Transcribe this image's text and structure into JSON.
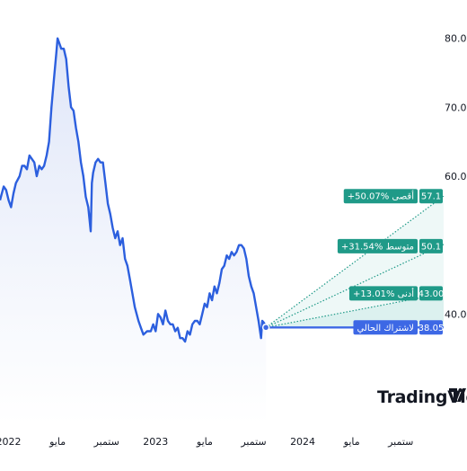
{
  "watermark": {
    "text": "TradingView"
  },
  "colors": {
    "line": "#2c5fde",
    "area_top": "#dfe6f8",
    "area_bottom": "#ffffff",
    "current": "#3d68e5",
    "forecast": "#1f9a88",
    "forecast_fill": "#26a69a",
    "axis_text": "#131722"
  },
  "chart_data": {
    "type": "line",
    "title": "",
    "xlabel": "",
    "ylabel": "",
    "x_ticks": [
      {
        "label": "2022",
        "t": 0.0
      },
      {
        "label": "مايو",
        "t": 4.0
      },
      {
        "label": "ستمبر",
        "t": 8.0
      },
      {
        "label": "2023",
        "t": 12.0
      },
      {
        "label": "مايو",
        "t": 16.0
      },
      {
        "label": "ستمبر",
        "t": 20.0
      },
      {
        "label": "2024",
        "t": 24.0
      },
      {
        "label": "مايو",
        "t": 28.0
      },
      {
        "label": "ستمبر",
        "t": 32.0
      }
    ],
    "y_ticks": [
      40.0,
      60.0,
      70.0,
      80.0
    ],
    "y_tick_labels": [
      "40.0",
      "60.0",
      "70.0",
      "80.0"
    ],
    "ylim": [
      24,
      84
    ],
    "xlim": [
      -0.7,
      35.5
    ],
    "grid": false,
    "series": [
      {
        "points": [
          [
            -0.7,
            56.5
          ],
          [
            -0.4,
            58.5
          ],
          [
            -0.2,
            58
          ],
          [
            0.0,
            56.5
          ],
          [
            0.2,
            55.5
          ],
          [
            0.4,
            57.5
          ],
          [
            0.6,
            59
          ],
          [
            0.9,
            60
          ],
          [
            1.1,
            61.5
          ],
          [
            1.3,
            61.5
          ],
          [
            1.5,
            61
          ],
          [
            1.7,
            63
          ],
          [
            1.9,
            62.5
          ],
          [
            2.1,
            62
          ],
          [
            2.3,
            60
          ],
          [
            2.5,
            61.5
          ],
          [
            2.7,
            61
          ],
          [
            2.9,
            61.5
          ],
          [
            3.1,
            63
          ],
          [
            3.3,
            65
          ],
          [
            3.5,
            70
          ],
          [
            3.7,
            74
          ],
          [
            3.9,
            78
          ],
          [
            4.0,
            80
          ],
          [
            4.1,
            79.5
          ],
          [
            4.3,
            78.5
          ],
          [
            4.5,
            78.5
          ],
          [
            4.7,
            77
          ],
          [
            4.9,
            73
          ],
          [
            5.1,
            70
          ],
          [
            5.3,
            69.5
          ],
          [
            5.5,
            67
          ],
          [
            5.7,
            65
          ],
          [
            5.9,
            62
          ],
          [
            6.1,
            60
          ],
          [
            6.3,
            57
          ],
          [
            6.5,
            55.5
          ],
          [
            6.7,
            52
          ],
          [
            6.8,
            59
          ],
          [
            6.9,
            60.5
          ],
          [
            7.1,
            62
          ],
          [
            7.3,
            62.5
          ],
          [
            7.5,
            62
          ],
          [
            7.7,
            62
          ],
          [
            7.9,
            59
          ],
          [
            8.1,
            56
          ],
          [
            8.3,
            54.5
          ],
          [
            8.5,
            52.5
          ],
          [
            8.7,
            51
          ],
          [
            8.9,
            52
          ],
          [
            9.1,
            50
          ],
          [
            9.3,
            51
          ],
          [
            9.5,
            48
          ],
          [
            9.7,
            47
          ],
          [
            9.9,
            45
          ],
          [
            10.1,
            43
          ],
          [
            10.3,
            41
          ],
          [
            10.6,
            39
          ],
          [
            10.8,
            38
          ],
          [
            11.0,
            37
          ],
          [
            11.3,
            37.5
          ],
          [
            11.6,
            37.5
          ],
          [
            11.8,
            38.5
          ],
          [
            12.0,
            37.5
          ],
          [
            12.2,
            40
          ],
          [
            12.4,
            39.5
          ],
          [
            12.6,
            38.5
          ],
          [
            12.8,
            40.5
          ],
          [
            13.0,
            39
          ],
          [
            13.2,
            38.5
          ],
          [
            13.4,
            38.5
          ],
          [
            13.6,
            37.5
          ],
          [
            13.8,
            38
          ],
          [
            14.0,
            36.5
          ],
          [
            14.2,
            36.5
          ],
          [
            14.4,
            36
          ],
          [
            14.6,
            37.5
          ],
          [
            14.8,
            37
          ],
          [
            15.0,
            38.5
          ],
          [
            15.2,
            39
          ],
          [
            15.4,
            39
          ],
          [
            15.6,
            38.5
          ],
          [
            15.8,
            40
          ],
          [
            16.0,
            41.5
          ],
          [
            16.2,
            41
          ],
          [
            16.4,
            43
          ],
          [
            16.6,
            42
          ],
          [
            16.8,
            44
          ],
          [
            17.0,
            43
          ],
          [
            17.2,
            44.5
          ],
          [
            17.4,
            46.5
          ],
          [
            17.6,
            47
          ],
          [
            17.8,
            48.5
          ],
          [
            18.0,
            48
          ],
          [
            18.2,
            49
          ],
          [
            18.4,
            48.5
          ],
          [
            18.6,
            49
          ],
          [
            18.8,
            50
          ],
          [
            19.0,
            50
          ],
          [
            19.2,
            49.5
          ],
          [
            19.4,
            48
          ],
          [
            19.6,
            45.5
          ],
          [
            19.8,
            44
          ],
          [
            20.0,
            43
          ],
          [
            20.2,
            41
          ],
          [
            20.4,
            39
          ],
          [
            20.6,
            36.5
          ],
          [
            20.7,
            39
          ],
          [
            20.8,
            38.8
          ],
          [
            20.9,
            38.5
          ],
          [
            21.0,
            38.05
          ]
        ]
      }
    ],
    "current": {
      "value": 38.05,
      "label": "لاشتراك الحالي",
      "value_label": "38.05"
    },
    "forecast": {
      "start_t": 21.0,
      "end_t": 35.5,
      "targets": [
        {
          "name": "أقصى",
          "change": "+50.07%",
          "value": 57.1,
          "value_label": "57.1"
        },
        {
          "name": "متوسط",
          "change": "+31.54%",
          "value": 50.1,
          "value_label": "50.1"
        },
        {
          "name": "أدنى",
          "change": "+13.01%",
          "value": 43.0,
          "value_label": "43.00"
        }
      ]
    }
  }
}
